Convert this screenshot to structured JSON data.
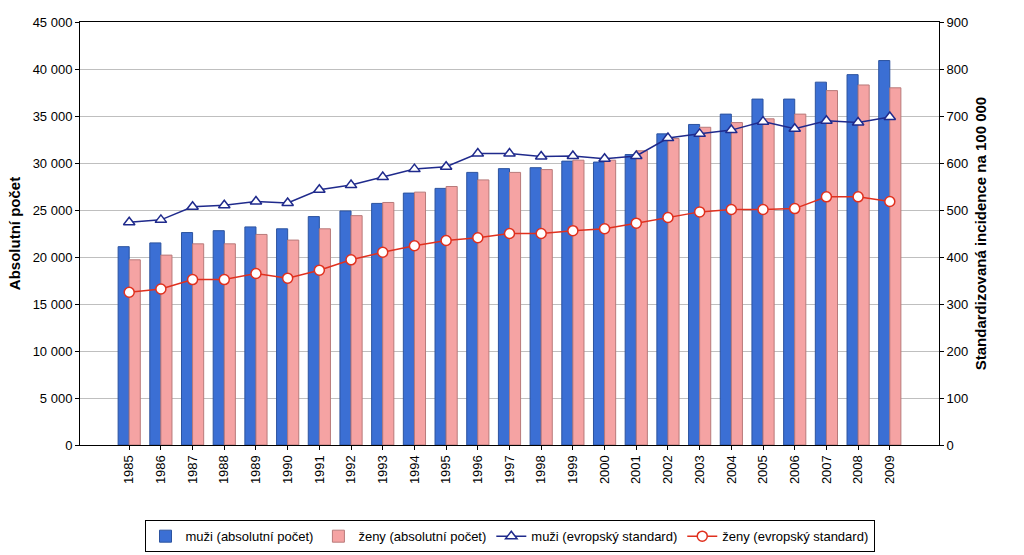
{
  "chart_data": {
    "type": "bar",
    "y_title": "Absolutní počet",
    "y2_title": "Standardizovaná incidence na 100 000",
    "categories": [
      "1985",
      "1986",
      "1987",
      "1988",
      "1989",
      "1990",
      "1991",
      "1992",
      "1993",
      "1994",
      "1995",
      "1996",
      "1997",
      "1998",
      "1999",
      "2000",
      "2001",
      "2002",
      "2003",
      "2004",
      "2005",
      "2006",
      "2007",
      "2008",
      "2009"
    ],
    "series": [
      {
        "name": "muži (absolutní počet)",
        "type": "bar",
        "color": "#3b6fd4",
        "values": [
          21100,
          21500,
          22600,
          22800,
          23200,
          23000,
          24300,
          24900,
          25700,
          26800,
          27300,
          29000,
          29400,
          29500,
          30200,
          30100,
          30900,
          33100,
          34100,
          35200,
          36800,
          36800,
          38600,
          39400,
          40900
        ]
      },
      {
        "name": "ženy (absolutní počet)",
        "type": "bar",
        "color": "#f5a3a3",
        "values": [
          19700,
          20200,
          21400,
          21400,
          22400,
          21800,
          23000,
          24400,
          25800,
          26900,
          27500,
          28200,
          29000,
          29300,
          30300,
          30300,
          31300,
          32600,
          33800,
          34300,
          34700,
          35200,
          37700,
          38300,
          38000
        ]
      },
      {
        "name": "muži (evropský standard)",
        "type": "line",
        "axis": "y2",
        "color": "#1f2a8c",
        "marker": "triangle-up",
        "values": [
          474,
          479,
          507,
          510,
          518,
          515,
          543,
          553,
          570,
          587,
          592,
          620,
          620,
          614,
          615,
          609,
          615,
          653,
          662,
          670,
          688,
          673,
          690,
          686,
          698
        ]
      },
      {
        "name": "ženy (evropský standard)",
        "type": "line",
        "axis": "y2",
        "color": "#e0301e",
        "marker": "circle",
        "values": [
          325,
          332,
          352,
          352,
          365,
          355,
          372,
          394,
          410,
          424,
          435,
          441,
          450,
          450,
          456,
          460,
          472,
          484,
          496,
          501,
          501,
          503,
          528,
          528,
          518
        ]
      }
    ],
    "ylim": [
      0,
      45000
    ],
    "yticks": [
      0,
      {
        "value": 5000,
        "label": "5 000"
      },
      {
        "value": 10000,
        "label": "10 000"
      },
      {
        "value": 15000,
        "label": "15 000"
      },
      {
        "value": 20000,
        "label": "20 000"
      },
      {
        "value": 25000,
        "label": "25 000"
      },
      {
        "value": 30000,
        "label": "30 000"
      },
      {
        "value": 35000,
        "label": "35 000"
      },
      {
        "value": 40000,
        "label": "40 000"
      },
      {
        "value": 45000,
        "label": "45 000"
      }
    ],
    "y2lim": [
      0,
      900
    ],
    "y2ticks": [
      0,
      100,
      200,
      300,
      400,
      500,
      600,
      700,
      800,
      900
    ],
    "grid": true,
    "legend": "bottom"
  }
}
